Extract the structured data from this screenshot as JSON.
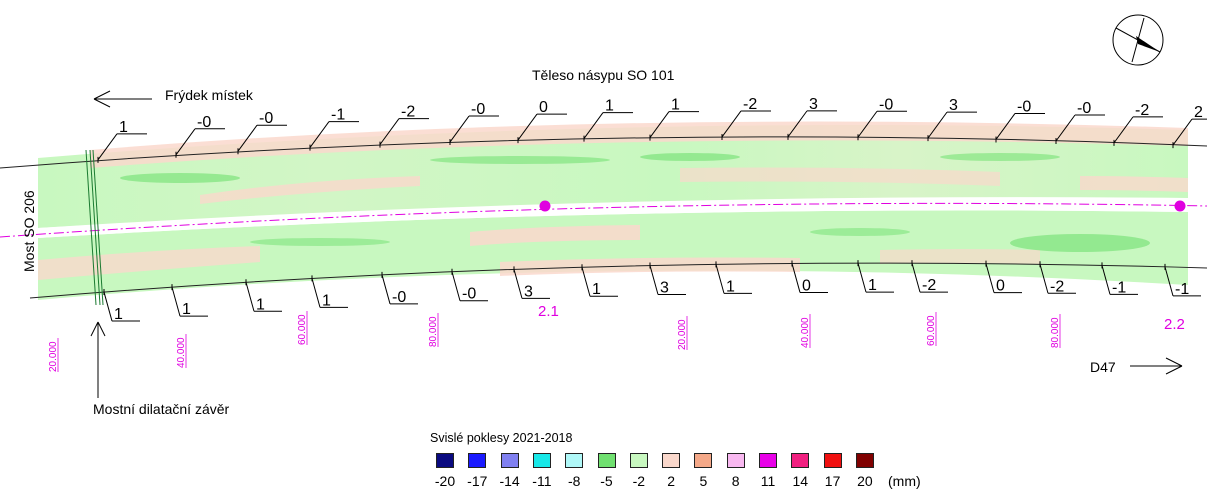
{
  "labels": {
    "embankment_title": "Těleso násypu SO 101",
    "direction_left": "Frýdek místek",
    "direction_right": "D47",
    "bridge": "Most SO 206",
    "joint": "Mostní dilatační závěr",
    "point_a": "2.1",
    "point_b": "2.2"
  },
  "upper_values": [
    "1",
    "-0",
    "-0",
    "-1",
    "-2",
    "-0",
    "0",
    "1",
    "1",
    "-2",
    "3",
    "-0",
    "3",
    "-0",
    "-0",
    "-2",
    "2"
  ],
  "lower_values": [
    "1",
    "1",
    "1",
    "1",
    "-0",
    "-0",
    "3",
    "1",
    "3",
    "1",
    "0",
    "1",
    "-2",
    "0",
    "-2",
    "-1",
    "-1"
  ],
  "stations": [
    "20.000",
    "40.000",
    "60.000",
    "80.000",
    "20.000",
    "40.000",
    "60.000",
    "80.000"
  ],
  "legend": {
    "title": "Svislé poklesy 2021-2018",
    "unit": "(mm)",
    "items": [
      {
        "value": "-20",
        "color": "#0a0a80"
      },
      {
        "value": "-17",
        "color": "#1a1aff"
      },
      {
        "value": "-14",
        "color": "#8080f0"
      },
      {
        "value": "-11",
        "color": "#18e8e8"
      },
      {
        "value": "-8",
        "color": "#b0f8f8"
      },
      {
        "value": "-5",
        "color": "#70e070"
      },
      {
        "value": "-2",
        "color": "#c8f8c0"
      },
      {
        "value": "2",
        "color": "#fad8cc"
      },
      {
        "value": "5",
        "color": "#f4a888"
      },
      {
        "value": "8",
        "color": "#f8b8f0"
      },
      {
        "value": "11",
        "color": "#e800e8"
      },
      {
        "value": "14",
        "color": "#f02080"
      },
      {
        "value": "17",
        "color": "#f01010"
      },
      {
        "value": "20",
        "color": "#800000"
      }
    ]
  },
  "colors": {
    "surface_green": "#c8f8c0",
    "surface_pink": "#fad8cc",
    "axis": "#e000e0"
  }
}
